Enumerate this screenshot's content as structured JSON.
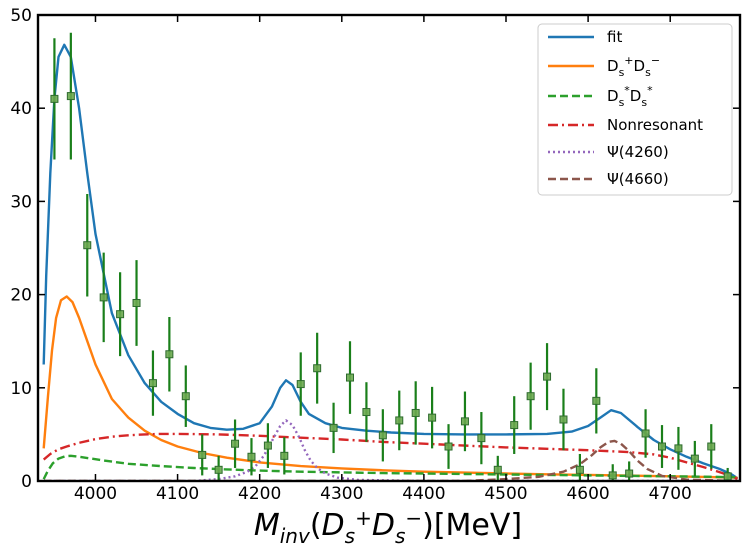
{
  "chart_data": {
    "type": "line",
    "title": "",
    "xlabel": "M_inv(D_s^+ D_s^-)[MeV]",
    "ylabel": "",
    "xlim": [
      3930,
      4785
    ],
    "ylim": [
      0,
      50
    ],
    "x_ticks": [
      4000,
      4100,
      4200,
      4300,
      4400,
      4500,
      4600,
      4700
    ],
    "y_ticks": [
      0,
      10,
      20,
      30,
      40,
      50
    ],
    "grid": false,
    "legend_position": "top-right",
    "colors": {
      "fit": "#1f77b4",
      "dsds": "#ff7f0e",
      "dsstar": "#2ca02c",
      "nonres": "#d62728",
      "psi4260": "#9467bd",
      "psi4660": "#8c564b",
      "data": "#1a7f1a"
    },
    "legend": [
      {
        "key": "fit",
        "label": "fit",
        "style": "solid"
      },
      {
        "key": "dsds",
        "label": "Ds+Ds-",
        "style": "solid"
      },
      {
        "key": "dsstar",
        "label": "Ds*Ds*",
        "style": "dashed"
      },
      {
        "key": "nonres",
        "label": "Nonresonant",
        "style": "dashdot"
      },
      {
        "key": "psi4260",
        "label": "Ψ(4260)",
        "style": "dotted"
      },
      {
        "key": "psi4660",
        "label": "Ψ(4660)",
        "style": "dashed"
      }
    ],
    "series": [
      {
        "key": "fit",
        "name": "fit",
        "x": [
          3937,
          3940,
          3945,
          3950,
          3955,
          3962,
          3970,
          3980,
          3990,
          4000,
          4020,
          4040,
          4060,
          4080,
          4100,
          4120,
          4140,
          4160,
          4180,
          4200,
          4215,
          4225,
          4232,
          4240,
          4250,
          4260,
          4280,
          4300,
          4330,
          4360,
          4400,
          4450,
          4500,
          4550,
          4580,
          4600,
          4615,
          4628,
          4640,
          4660,
          4680,
          4700,
          4720,
          4740,
          4760,
          4775,
          4782
        ],
        "y": [
          12.5,
          22,
          33,
          41,
          45.5,
          46.8,
          45.5,
          40,
          33,
          26.5,
          18,
          13.5,
          10.5,
          8.5,
          7.2,
          6.2,
          5.7,
          5.5,
          5.6,
          6.2,
          8,
          10,
          10.8,
          10.3,
          8.5,
          7.2,
          6.2,
          5.7,
          5.4,
          5.2,
          5.05,
          5.0,
          5.0,
          5.05,
          5.3,
          5.9,
          6.8,
          7.6,
          7.3,
          5.8,
          4.4,
          3.4,
          2.6,
          1.9,
          1.3,
          0.7,
          0.3
        ]
      },
      {
        "key": "dsds",
        "name": "Ds+Ds-",
        "x": [
          3937,
          3942,
          3947,
          3952,
          3958,
          3965,
          3972,
          3980,
          3990,
          4000,
          4020,
          4040,
          4060,
          4080,
          4100,
          4130,
          4160,
          4200,
          4250,
          4300,
          4350,
          4400,
          4450,
          4500,
          4550,
          4600,
          4650,
          4700,
          4750,
          4782
        ],
        "y": [
          3.5,
          9,
          14,
          17.5,
          19.4,
          19.8,
          19.2,
          17.5,
          15,
          12.5,
          8.8,
          6.8,
          5.4,
          4.4,
          3.7,
          3.0,
          2.5,
          2.0,
          1.6,
          1.35,
          1.15,
          1.0,
          0.9,
          0.8,
          0.72,
          0.65,
          0.58,
          0.5,
          0.42,
          0.35
        ]
      },
      {
        "key": "dsstar",
        "name": "Ds*Ds*",
        "x": [
          3937,
          3942,
          3948,
          3955,
          3963,
          3970,
          3980,
          3995,
          4010,
          4040,
          4080,
          4120,
          4160,
          4200,
          4250,
          4300,
          4350,
          4400,
          4450,
          4500,
          4550,
          4600,
          4650,
          4700,
          4750,
          4782
        ],
        "y": [
          0.2,
          1.1,
          1.9,
          2.4,
          2.65,
          2.7,
          2.6,
          2.4,
          2.2,
          1.85,
          1.6,
          1.4,
          1.25,
          1.12,
          1.0,
          0.92,
          0.85,
          0.8,
          0.75,
          0.7,
          0.65,
          0.6,
          0.55,
          0.5,
          0.45,
          0.4
        ]
      },
      {
        "key": "nonres",
        "name": "Nonresonant",
        "x": [
          3937,
          3945,
          3955,
          3965,
          3980,
          4000,
          4020,
          4040,
          4060,
          4080,
          4100,
          4150,
          4200,
          4250,
          4300,
          4350,
          4400,
          4450,
          4500,
          4550,
          4600,
          4650,
          4680,
          4700,
          4720,
          4740,
          4760,
          4775,
          4782
        ],
        "y": [
          2.3,
          2.9,
          3.4,
          3.7,
          4.1,
          4.5,
          4.75,
          4.9,
          5.0,
          5.05,
          5.05,
          5.0,
          4.85,
          4.65,
          4.45,
          4.2,
          4.0,
          3.8,
          3.6,
          3.45,
          3.3,
          3.1,
          2.85,
          2.5,
          2.0,
          1.5,
          0.95,
          0.5,
          0.2
        ]
      },
      {
        "key": "psi4260",
        "name": "Ψ(4260)",
        "x": [
          3937,
          4120,
          4150,
          4170,
          4185,
          4195,
          4205,
          4215,
          4225,
          4232,
          4240,
          4248,
          4255,
          4262,
          4270,
          4280,
          4295,
          4320,
          4400,
          4782
        ],
        "y": [
          0,
          0,
          0.2,
          0.5,
          1.0,
          1.6,
          2.7,
          4.3,
          5.9,
          6.5,
          6.0,
          4.7,
          3.3,
          2.2,
          1.4,
          0.8,
          0.35,
          0.12,
          0,
          0
        ]
      },
      {
        "key": "psi4660",
        "name": "Ψ(4660)",
        "x": [
          3937,
          4450,
          4500,
          4540,
          4570,
          4590,
          4605,
          4615,
          4625,
          4632,
          4640,
          4650,
          4660,
          4672,
          4690,
          4720,
          4782
        ],
        "y": [
          0,
          0,
          0.2,
          0.45,
          1.0,
          1.8,
          2.8,
          3.6,
          4.2,
          4.3,
          4.0,
          3.2,
          2.2,
          1.3,
          0.55,
          0.15,
          0
        ]
      }
    ],
    "data_points": {
      "name": "data",
      "x": [
        3950,
        3970,
        3990,
        4010,
        4030,
        4050,
        4070,
        4090,
        4110,
        4130,
        4150,
        4170,
        4190,
        4210,
        4230,
        4250,
        4270,
        4290,
        4310,
        4330,
        4350,
        4370,
        4390,
        4410,
        4430,
        4450,
        4470,
        4490,
        4510,
        4530,
        4550,
        4570,
        4590,
        4610,
        4630,
        4650,
        4670,
        4690,
        4710,
        4730,
        4750,
        4770
      ],
      "y": [
        41,
        41.3,
        25.3,
        19.7,
        17.9,
        19.1,
        10.5,
        13.6,
        9.1,
        2.8,
        1.2,
        4.0,
        2.6,
        3.8,
        2.7,
        10.4,
        12.1,
        5.7,
        11.1,
        7.4,
        4.9,
        6.5,
        7.3,
        6.8,
        3.7,
        6.4,
        4.6,
        1.2,
        6.0,
        9.1,
        11.2,
        6.6,
        1.2,
        8.6,
        0.6,
        0.8,
        5.1,
        3.7,
        3.5,
        2.4,
        3.7,
        0.5
      ],
      "err": [
        6.5,
        6.8,
        5.5,
        4.8,
        4.5,
        4.6,
        3.5,
        4.0,
        3.3,
        2.2,
        1.5,
        2.6,
        2.0,
        2.4,
        2.0,
        3.4,
        3.8,
        2.7,
        3.9,
        3.2,
        2.8,
        3.2,
        3.4,
        3.3,
        2.4,
        3.2,
        2.8,
        1.5,
        3.1,
        3.6,
        3.6,
        3.3,
        1.7,
        3.5,
        1.2,
        1.3,
        2.6,
        2.3,
        2.3,
        1.9,
        2.4,
        0.9
      ]
    }
  }
}
